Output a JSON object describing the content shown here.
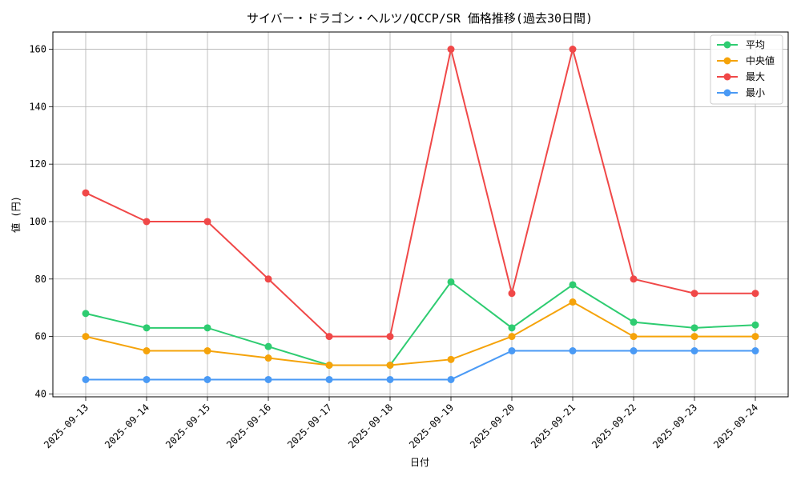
{
  "chart_data": {
    "type": "line",
    "title": "サイバー・ドラゴン・ヘルツ/QCCP/SR 価格推移(過去30日間)",
    "xlabel": "日付",
    "ylabel": "値 (円)",
    "ylim": [
      39,
      166
    ],
    "yticks": [
      40,
      60,
      80,
      100,
      120,
      140,
      160
    ],
    "grid": true,
    "legend_position": "top-right",
    "categories": [
      "2025-09-13",
      "2025-09-14",
      "2025-09-15",
      "2025-09-16",
      "2025-09-17",
      "2025-09-18",
      "2025-09-19",
      "2025-09-20",
      "2025-09-21",
      "2025-09-22",
      "2025-09-23",
      "2025-09-24"
    ],
    "series": [
      {
        "name": "平均",
        "color": "#2ecc71",
        "values": [
          68,
          63,
          63,
          56.5,
          50,
          50,
          79,
          63,
          78,
          65,
          63,
          64
        ]
      },
      {
        "name": "中央値",
        "color": "#f5a30a",
        "values": [
          60,
          55,
          55,
          52.5,
          50,
          50,
          52,
          60,
          72,
          60,
          60,
          60
        ]
      },
      {
        "name": "最大",
        "color": "#f04848",
        "values": [
          110,
          100,
          100,
          80,
          60,
          60,
          160,
          75,
          160,
          80,
          75,
          75
        ]
      },
      {
        "name": "最小",
        "color": "#4a9af5",
        "values": [
          45,
          45,
          45,
          45,
          45,
          45,
          45,
          55,
          55,
          55,
          55,
          55
        ]
      }
    ]
  }
}
